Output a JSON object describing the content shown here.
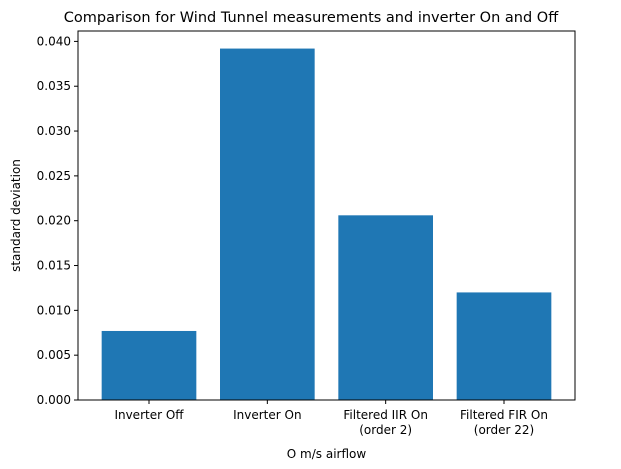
{
  "chart_data": {
    "type": "bar",
    "title": "Comparison for Wind Tunnel measurements and inverter On and Off",
    "xlabel": "O m/s airflow",
    "ylabel": "standard deviation",
    "categories": [
      [
        "Inverter Off"
      ],
      [
        "Inverter On"
      ],
      [
        "Filtered IIR On",
        "(order 2)"
      ],
      [
        "Filtered FIR On",
        "(order 22)"
      ]
    ],
    "values": [
      0.0077,
      0.0392,
      0.0206,
      0.012
    ],
    "ylim": [
      0,
      0.04116
    ],
    "yticks": [
      {
        "value": 0.0,
        "label": "0.000"
      },
      {
        "value": 0.005,
        "label": "0.005"
      },
      {
        "value": 0.01,
        "label": "0.010"
      },
      {
        "value": 0.015,
        "label": "0.015"
      },
      {
        "value": 0.02,
        "label": "0.020"
      },
      {
        "value": 0.025,
        "label": "0.025"
      },
      {
        "value": 0.03,
        "label": "0.030"
      },
      {
        "value": 0.035,
        "label": "0.035"
      },
      {
        "value": 0.04,
        "label": "0.040"
      }
    ],
    "bar_color": "#1f77b4",
    "grid": false,
    "legend": "none"
  }
}
